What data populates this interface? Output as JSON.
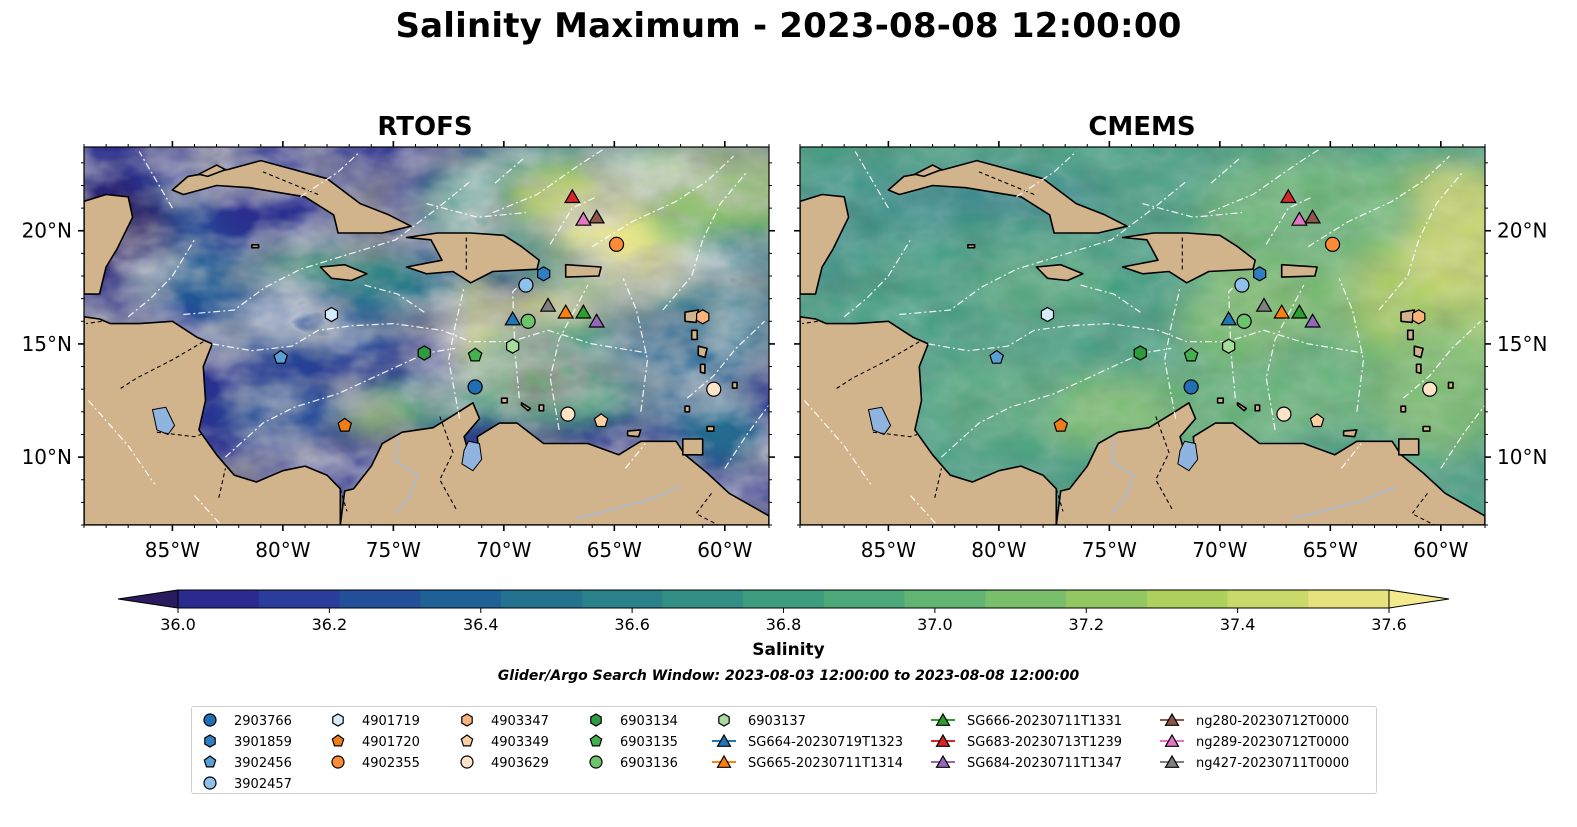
{
  "title": "Salinity Maximum - 2023-08-08 12:00:00",
  "panels": [
    {
      "title": "RTOFS",
      "field": "rtofs"
    },
    {
      "title": "CMEMS",
      "field": "cmems"
    }
  ],
  "map": {
    "lon_range": [
      -89,
      -58
    ],
    "lat_range": [
      7,
      23.7
    ],
    "xticks": [
      {
        "lon": -85,
        "label": "85°W"
      },
      {
        "lon": -80,
        "label": "80°W"
      },
      {
        "lon": -75,
        "label": "75°W"
      },
      {
        "lon": -70,
        "label": "70°W"
      },
      {
        "lon": -65,
        "label": "65°W"
      },
      {
        "lon": -60,
        "label": "60°W"
      }
    ],
    "yticks": [
      {
        "lat": 20,
        "label": "20°N"
      },
      {
        "lat": 15,
        "label": "15°N"
      },
      {
        "lat": 10,
        "label": "10°N"
      }
    ],
    "colors": {
      "land": "#d2b48c",
      "lake": "#8fb4e0",
      "coast": "#000000",
      "eez": "#ffffff"
    }
  },
  "colorbar": {
    "label": "Salinity",
    "min": 36.0,
    "max": 37.6,
    "step": 0.1,
    "ticks": [
      "36.0",
      "36.2",
      "36.4",
      "36.6",
      "36.8",
      "37.0",
      "37.2",
      "37.4",
      "37.6"
    ],
    "colors": [
      "#2a1a5e",
      "#2b2a8f",
      "#2a3d9a",
      "#23509a",
      "#1f6196",
      "#23728f",
      "#2a818a",
      "#328f85",
      "#3e9d7f",
      "#4ea97a",
      "#62b473",
      "#79be6a",
      "#93c762",
      "#aed05d",
      "#cbd86a",
      "#e6e27e",
      "#f3e98d"
    ],
    "extend": "both"
  },
  "search_window": "Glider/Argo Search Window: 2023-08-03 12:00:00 to 2023-08-08 12:00:00",
  "legend": [
    [
      {
        "label": "2903766",
        "marker": "circle",
        "color": "#1f6fb4"
      },
      {
        "label": "3901859",
        "marker": "hexagon",
        "color": "#2f7ec1"
      },
      {
        "label": "3902456",
        "marker": "pentagon",
        "color": "#5b9fd4"
      },
      {
        "label": "3902457",
        "marker": "circle",
        "color": "#8ec2ec"
      }
    ],
    [
      {
        "label": "4901719",
        "marker": "hexagon",
        "color": "#d6ecfb"
      },
      {
        "label": "4901720",
        "marker": "pentagon",
        "color": "#f07d17"
      },
      {
        "label": "4902355",
        "marker": "circle",
        "color": "#fb8c35"
      }
    ],
    [
      {
        "label": "4903347",
        "marker": "hexagon",
        "color": "#fdb27a"
      },
      {
        "label": "4903349",
        "marker": "pentagon",
        "color": "#fdd0a2"
      },
      {
        "label": "4903629",
        "marker": "circle",
        "color": "#fde4c8"
      }
    ],
    [
      {
        "label": "6903134",
        "marker": "hexagon",
        "color": "#2e9c3e"
      },
      {
        "label": "6903135",
        "marker": "pentagon",
        "color": "#45b04f"
      },
      {
        "label": "6903136",
        "marker": "circle",
        "color": "#6cc46a"
      }
    ],
    [
      {
        "label": "6903137",
        "marker": "hexagon",
        "color": "#a6dd9a"
      },
      {
        "label": "SG664-20230719T1323",
        "marker": "triangle",
        "color": "#1f77b4"
      },
      {
        "label": "SG665-20230711T1314",
        "marker": "triangle",
        "color": "#ff7f0e"
      }
    ],
    [
      {
        "label": "SG666-20230711T1331",
        "marker": "triangle",
        "color": "#2ca02c"
      },
      {
        "label": "SG683-20230713T1239",
        "marker": "triangle",
        "color": "#d62728"
      },
      {
        "label": "SG684-20230711T1347",
        "marker": "triangle",
        "color": "#9467bd"
      }
    ],
    [
      {
        "label": "ng280-20230712T0000",
        "marker": "triangle",
        "color": "#8c564b"
      },
      {
        "label": "ng289-20230712T0000",
        "marker": "triangle",
        "color": "#e377c2"
      },
      {
        "label": "ng427-20230711T0000",
        "marker": "triangle",
        "color": "#7f7f7f"
      }
    ]
  ],
  "observations": [
    {
      "id": "2903766",
      "lon": -71.3,
      "lat": 13.1
    },
    {
      "id": "3901859",
      "lon": -68.2,
      "lat": 18.1
    },
    {
      "id": "3902456",
      "lon": -80.1,
      "lat": 14.4
    },
    {
      "id": "3902457",
      "lon": -69.0,
      "lat": 17.6
    },
    {
      "id": "4901719",
      "lon": -77.8,
      "lat": 16.3
    },
    {
      "id": "4901720",
      "lon": -77.2,
      "lat": 11.4
    },
    {
      "id": "4902355",
      "lon": -64.9,
      "lat": 19.4
    },
    {
      "id": "4903347",
      "lon": -61.0,
      "lat": 16.2
    },
    {
      "id": "4903349",
      "lon": -65.6,
      "lat": 11.6
    },
    {
      "id": "4903629",
      "lon": -67.1,
      "lat": 11.9
    },
    {
      "id": "6903134",
      "lon": -73.6,
      "lat": 14.6
    },
    {
      "id": "6903135",
      "lon": -71.3,
      "lat": 14.5
    },
    {
      "id": "6903136",
      "lon": -68.9,
      "lat": 16.0
    },
    {
      "id": "6903137",
      "lon": -69.6,
      "lat": 14.9
    },
    {
      "id": "SG664-20230719T1323",
      "lon": -69.6,
      "lat": 16.1
    },
    {
      "id": "SG665-20230711T1314",
      "lon": -67.2,
      "lat": 16.4
    },
    {
      "id": "SG666-20230711T1331",
      "lon": -66.4,
      "lat": 16.4
    },
    {
      "id": "SG683-20230713T1239",
      "lon": -66.9,
      "lat": 21.5
    },
    {
      "id": "SG684-20230711T1347",
      "lon": -65.8,
      "lat": 16.0
    },
    {
      "id": "ng280-20230712T0000",
      "lon": -65.8,
      "lat": 20.6
    },
    {
      "id": "ng289-20230712T0000",
      "lon": -66.4,
      "lat": 20.5
    },
    {
      "id": "ng427-20230711T0000",
      "lon": -68.0,
      "lat": 16.7
    },
    {
      "id": "4903629",
      "lon": -60.5,
      "lat": 13.0
    }
  ]
}
